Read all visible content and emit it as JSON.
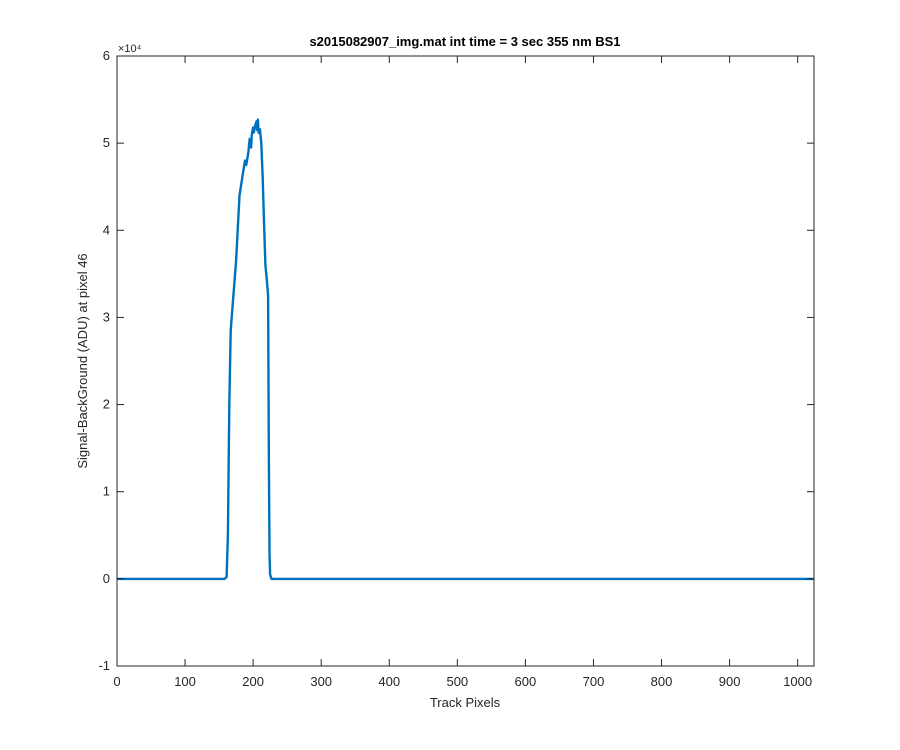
{
  "chart_data": {
    "type": "line",
    "title": "s2015082907_img.mat int time = 3 sec  355 nm BS1",
    "xlabel": "Track Pixels",
    "ylabel": "Signal-BackGround (ADU) at pixel 46",
    "xlim": [
      0,
      1024
    ],
    "ylim": [
      -10000,
      60000
    ],
    "x_ticks": [
      0,
      100,
      200,
      300,
      400,
      500,
      600,
      700,
      800,
      900,
      1000
    ],
    "x_tick_labels": [
      "0",
      "100",
      "200",
      "300",
      "400",
      "500",
      "600",
      "700",
      "800",
      "900",
      "1000"
    ],
    "y_ticks": [
      -10000,
      0,
      10000,
      20000,
      30000,
      40000,
      50000,
      60000
    ],
    "y_tick_labels": [
      "-1",
      "0",
      "1",
      "2",
      "3",
      "4",
      "5",
      "6"
    ],
    "y_exponent_label": "×10⁴",
    "grid": false,
    "series": [
      {
        "color": "#0072BD",
        "x": [
          0,
          158,
          161,
          163,
          165,
          167,
          170,
          175,
          180,
          185,
          188,
          190,
          193,
          195,
          197,
          198,
          200,
          201,
          203,
          205,
          206,
          207,
          208,
          210,
          212,
          214,
          216,
          218,
          220,
          221,
          222,
          223,
          224,
          225,
          227,
          229,
          231,
          240,
          1024
        ],
        "y": [
          0,
          0,
          200,
          5000,
          20000,
          28500,
          31500,
          36500,
          44000,
          46500,
          48000,
          47500,
          49000,
          50500,
          49500,
          51000,
          51800,
          51200,
          52000,
          52500,
          51500,
          52700,
          51200,
          51600,
          50000,
          46000,
          41000,
          36000,
          34500,
          33500,
          32500,
          15000,
          3000,
          500,
          0,
          0,
          0,
          0,
          0
        ]
      }
    ]
  }
}
